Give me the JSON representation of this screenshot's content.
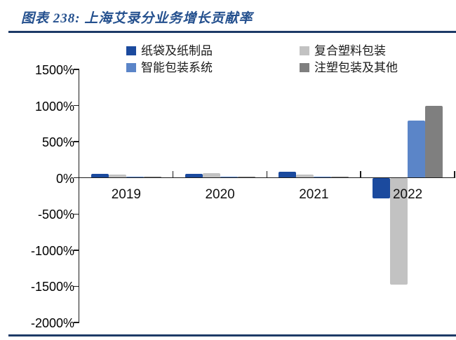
{
  "figure": {
    "label": "图表 238:",
    "title_full": "图表 238:  上海艾录分业务增长贡献率",
    "accent_color": "#24508e",
    "rule_color": "#1d3a67"
  },
  "chart_data": {
    "type": "bar",
    "title": "上海艾录分业务增长贡献率",
    "categories": [
      "2019",
      "2020",
      "2021",
      "2022"
    ],
    "series": [
      {
        "name": "纸袋及纸制品",
        "color": "#1b4a9e",
        "values": [
          55,
          55,
          85,
          -280
        ]
      },
      {
        "name": "复合塑料包装",
        "color": "#c2c2c2",
        "values": [
          50,
          65,
          45,
          -1470
        ]
      },
      {
        "name": "智能包装系统",
        "color": "#5b85c8",
        "values": [
          5,
          5,
          10,
          790
        ]
      },
      {
        "name": "注塑包装及其他",
        "color": "#7f7f7f",
        "values": [
          10,
          5,
          15,
          1000
        ]
      }
    ],
    "ylabel": "",
    "xlabel": "",
    "ylim": [
      -2000,
      1500
    ],
    "ytick_step": 500,
    "ytick_suffix": "%",
    "yticks": [
      "1500%",
      "1000%",
      "500%",
      "0%",
      "-500%",
      "-1000%",
      "-1500%",
      "-2000%"
    ],
    "legend_position": "top",
    "grid": false
  }
}
